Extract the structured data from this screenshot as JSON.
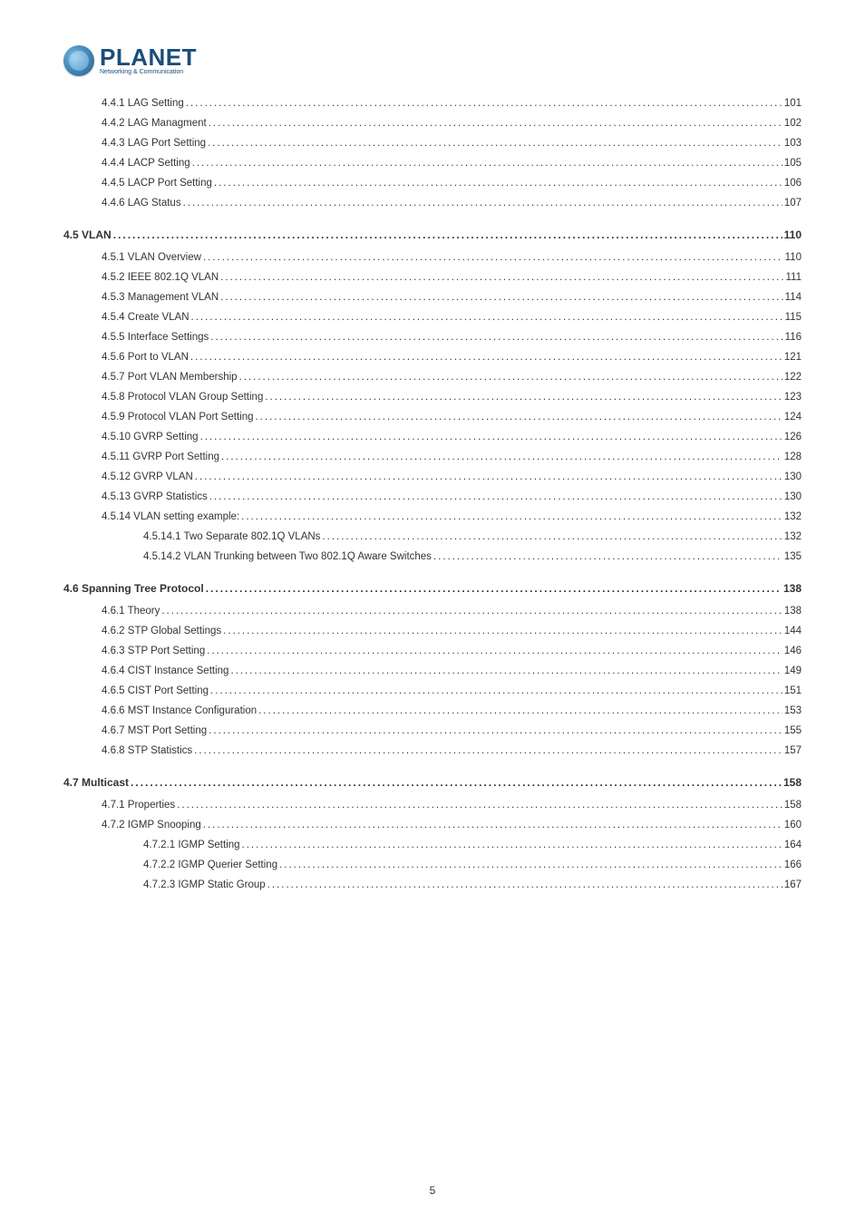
{
  "logo": {
    "main": "PLANET",
    "sub": "Networking & Communication"
  },
  "footer_page": "5",
  "toc": [
    {
      "label": "4.4.1 LAG Setting",
      "page": "101",
      "indent": 1,
      "heading": false
    },
    {
      "label": "4.4.2 LAG Managment",
      "page": "102",
      "indent": 1,
      "heading": false
    },
    {
      "label": "4.4.3 LAG Port Setting",
      "page": "103",
      "indent": 1,
      "heading": false
    },
    {
      "label": "4.4.4 LACP Setting",
      "page": "105",
      "indent": 1,
      "heading": false
    },
    {
      "label": "4.4.5 LACP Port Setting",
      "page": "106",
      "indent": 1,
      "heading": false
    },
    {
      "label": "4.4.6 LAG Status",
      "page": "107",
      "indent": 1,
      "heading": false
    },
    {
      "label": "4.5 VLAN",
      "page": "110",
      "indent": 0,
      "heading": true
    },
    {
      "label": "4.5.1 VLAN Overview",
      "page": "110",
      "indent": 1,
      "heading": false
    },
    {
      "label": "4.5.2 IEEE 802.1Q VLAN",
      "page": "111",
      "indent": 1,
      "heading": false
    },
    {
      "label": "4.5.3 Management VLAN",
      "page": "114",
      "indent": 1,
      "heading": false
    },
    {
      "label": "4.5.4 Create VLAN",
      "page": "115",
      "indent": 1,
      "heading": false
    },
    {
      "label": "4.5.5 Interface Settings",
      "page": "116",
      "indent": 1,
      "heading": false
    },
    {
      "label": "4.5.6 Port to VLAN",
      "page": "121",
      "indent": 1,
      "heading": false
    },
    {
      "label": "4.5.7 Port VLAN Membership",
      "page": "122",
      "indent": 1,
      "heading": false
    },
    {
      "label": "4.5.8 Protocol VLAN Group Setting",
      "page": "123",
      "indent": 1,
      "heading": false
    },
    {
      "label": "4.5.9 Protocol VLAN Port Setting",
      "page": "124",
      "indent": 1,
      "heading": false
    },
    {
      "label": "4.5.10 GVRP Setting",
      "page": "126",
      "indent": 1,
      "heading": false
    },
    {
      "label": "4.5.11 GVRP Port Setting",
      "page": "128",
      "indent": 1,
      "heading": false
    },
    {
      "label": "4.5.12 GVRP VLAN",
      "page": "130",
      "indent": 1,
      "heading": false
    },
    {
      "label": "4.5.13 GVRP Statistics",
      "page": "130",
      "indent": 1,
      "heading": false
    },
    {
      "label": "4.5.14 VLAN setting example:",
      "page": "132",
      "indent": 1,
      "heading": false
    },
    {
      "label": "4.5.14.1 Two Separate 802.1Q VLANs",
      "page": "132",
      "indent": 2,
      "heading": false
    },
    {
      "label": "4.5.14.2 VLAN Trunking between Two 802.1Q Aware Switches",
      "page": "135",
      "indent": 2,
      "heading": false
    },
    {
      "label": "4.6 Spanning Tree Protocol",
      "page": "138",
      "indent": 0,
      "heading": true
    },
    {
      "label": "4.6.1 Theory",
      "page": "138",
      "indent": 1,
      "heading": false
    },
    {
      "label": "4.6.2 STP Global Settings",
      "page": "144",
      "indent": 1,
      "heading": false
    },
    {
      "label": "4.6.3 STP Port Setting",
      "page": "146",
      "indent": 1,
      "heading": false
    },
    {
      "label": "4.6.4 CIST Instance Setting",
      "page": "149",
      "indent": 1,
      "heading": false
    },
    {
      "label": "4.6.5 CIST Port Setting",
      "page": "151",
      "indent": 1,
      "heading": false
    },
    {
      "label": "4.6.6 MST Instance Configuration",
      "page": "153",
      "indent": 1,
      "heading": false
    },
    {
      "label": "4.6.7 MST Port Setting",
      "page": "155",
      "indent": 1,
      "heading": false
    },
    {
      "label": "4.6.8 STP Statistics",
      "page": "157",
      "indent": 1,
      "heading": false
    },
    {
      "label": "4.7 Multicast",
      "page": "158",
      "indent": 0,
      "heading": true
    },
    {
      "label": "4.7.1 Properties",
      "page": "158",
      "indent": 1,
      "heading": false
    },
    {
      "label": "4.7.2 IGMP Snooping",
      "page": "160",
      "indent": 1,
      "heading": false
    },
    {
      "label": "4.7.2.1 IGMP Setting",
      "page": "164",
      "indent": 2,
      "heading": false
    },
    {
      "label": "4.7.2.2 IGMP Querier Setting",
      "page": "166",
      "indent": 2,
      "heading": false
    },
    {
      "label": "4.7.2.3 IGMP Static Group",
      "page": "167",
      "indent": 2,
      "heading": false
    }
  ]
}
